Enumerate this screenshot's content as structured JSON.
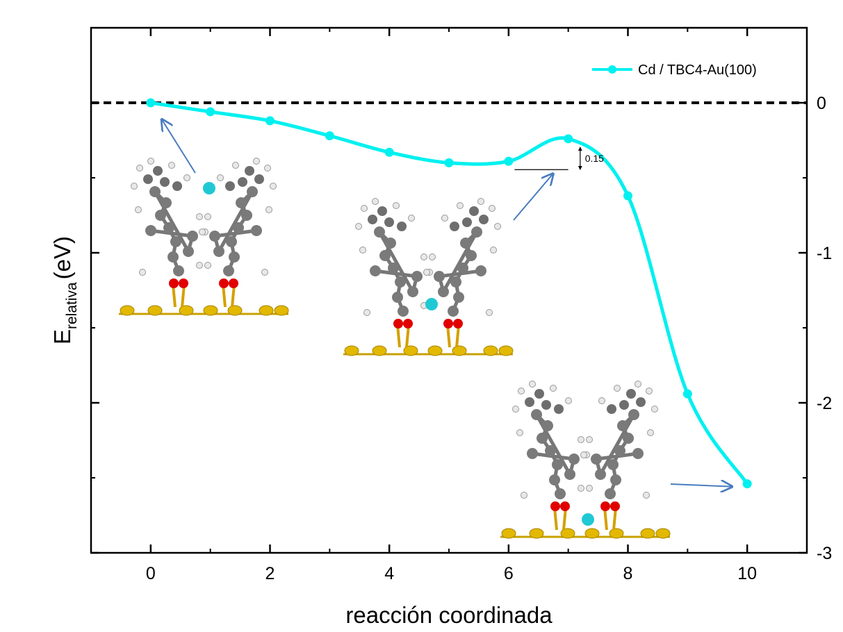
{
  "chart_data": {
    "type": "line",
    "xlabel": "reacción coordinada",
    "ylabel_main": "E",
    "ylabel_sub": "relativa",
    "ylabel_unit": "(eV)",
    "xlim": [
      -1,
      11
    ],
    "ylim": [
      -3,
      0.5
    ],
    "x_ticks": [
      0,
      2,
      4,
      6,
      8,
      10
    ],
    "x_tick_labels": [
      "0",
      "2",
      "4",
      "6",
      "8",
      "10"
    ],
    "y_ticks": [
      0,
      -1,
      -2,
      -3
    ],
    "y_tick_labels": [
      "0",
      "-1",
      "-2",
      "-3"
    ],
    "y_axis_side": "right",
    "reference_line": {
      "y": 0,
      "style": "dashed",
      "color": "#000000"
    },
    "series": [
      {
        "name": "Cd / TBC4-Au(100)",
        "color": "#00f0f0",
        "x": [
          0,
          1,
          2,
          3,
          4,
          5,
          6,
          7,
          8,
          9,
          10
        ],
        "y": [
          0.0,
          -0.06,
          -0.12,
          -0.22,
          -0.33,
          -0.4,
          -0.39,
          -0.24,
          -0.62,
          -1.94,
          -2.54
        ]
      }
    ],
    "legend": {
      "position": "top-right"
    },
    "annotations": [
      {
        "text": "0.15",
        "x": 7,
        "y_top": -0.24,
        "y_bottom": -0.39
      }
    ],
    "insets": [
      {
        "name": "initial-state-structure",
        "points_to": {
          "x": 0,
          "y": 0.0
        }
      },
      {
        "name": "transition-state-structure",
        "points_to": {
          "x": 7,
          "y": -0.45
        }
      },
      {
        "name": "final-state-structure",
        "points_to": {
          "x": 10,
          "y": -2.54
        }
      }
    ]
  }
}
